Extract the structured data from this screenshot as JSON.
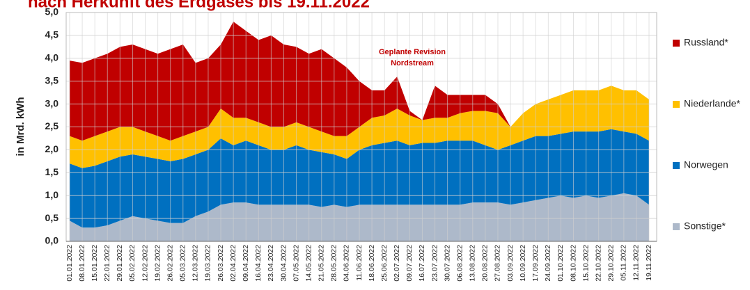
{
  "chart_data": {
    "type": "stacked_area",
    "title": "nach Herkunft des Erdgases bis 19.11.2022",
    "y_label": "in Mrd. kWh",
    "annotations": [
      "Geplante Revision",
      "Nordstream"
    ],
    "legend": "right",
    "grid": true,
    "categories": [
      "01.01.2022",
      "08.01.2022",
      "15.01.2022",
      "22.01.2022",
      "29.01.2022",
      "05.02.2022",
      "12.02.2022",
      "19.02.2022",
      "26.02.2022",
      "05.03.2022",
      "12.03.2022",
      "19.03.2022",
      "26.03.2022",
      "02.04.2022",
      "09.04.2022",
      "16.04.2022",
      "23.04.2022",
      "30.04.2022",
      "07.05.2022",
      "14.05.2022",
      "21.05.2022",
      "28.05.2022",
      "04.06.2022",
      "11.06.2022",
      "18.06.2022",
      "25.06.2022",
      "02.07.2022",
      "09.07.2022",
      "16.07.2022",
      "23.07.2022",
      "30.07.2022",
      "06.08.2022",
      "13.08.2022",
      "20.08.2022",
      "27.08.2022",
      "03.09.2022",
      "10.09.2022",
      "17.09.2022",
      "24.09.2022",
      "01.10.2022",
      "08.10.2022",
      "15.10.2022",
      "22.10.2022",
      "29.10.2022",
      "05.11.2022",
      "12.11.2022",
      "19.11.2022"
    ],
    "ylim": [
      0,
      5
    ],
    "yticks": [
      {
        "value": 0,
        "label": "0,0"
      },
      {
        "value": 0.5,
        "label": "0,5"
      },
      {
        "value": 1,
        "label": "1,0"
      },
      {
        "value": 1.5,
        "label": "1,5"
      },
      {
        "value": 2,
        "label": "2,0"
      },
      {
        "value": 2.5,
        "label": "2,5"
      },
      {
        "value": 3,
        "label": "3,0"
      },
      {
        "value": 3.5,
        "label": "3,5"
      },
      {
        "value": 4,
        "label": "4,0"
      },
      {
        "value": 4.5,
        "label": "4,5"
      },
      {
        "value": 5,
        "label": "5,0"
      }
    ],
    "series": [
      {
        "name": "Sonstige*",
        "color": "#adb9ca",
        "values": [
          0.45,
          0.3,
          0.3,
          0.35,
          0.45,
          0.55,
          0.5,
          0.45,
          0.4,
          0.4,
          0.55,
          0.65,
          0.8,
          0.85,
          0.85,
          0.8,
          0.8,
          0.8,
          0.8,
          0.8,
          0.75,
          0.8,
          0.75,
          0.8,
          0.8,
          0.8,
          0.8,
          0.8,
          0.8,
          0.8,
          0.8,
          0.8,
          0.85,
          0.85,
          0.85,
          0.8,
          0.85,
          0.9,
          0.95,
          1.0,
          0.95,
          1.0,
          0.95,
          1.0,
          1.05,
          1.0,
          0.8
        ]
      },
      {
        "name": "Norwegen",
        "color": "#0070c0",
        "values": [
          1.25,
          1.3,
          1.35,
          1.4,
          1.4,
          1.35,
          1.35,
          1.35,
          1.35,
          1.4,
          1.35,
          1.35,
          1.45,
          1.25,
          1.35,
          1.3,
          1.2,
          1.2,
          1.3,
          1.2,
          1.2,
          1.1,
          1.05,
          1.2,
          1.3,
          1.35,
          1.4,
          1.3,
          1.35,
          1.35,
          1.4,
          1.4,
          1.35,
          1.25,
          1.15,
          1.3,
          1.35,
          1.4,
          1.35,
          1.35,
          1.45,
          1.4,
          1.45,
          1.45,
          1.35,
          1.35,
          1.4
        ]
      },
      {
        "name": "Niederlande*",
        "color": "#ffc000",
        "values": [
          0.6,
          0.6,
          0.65,
          0.65,
          0.65,
          0.6,
          0.55,
          0.5,
          0.45,
          0.5,
          0.5,
          0.5,
          0.65,
          0.6,
          0.5,
          0.5,
          0.5,
          0.5,
          0.5,
          0.5,
          0.45,
          0.4,
          0.5,
          0.5,
          0.6,
          0.6,
          0.7,
          0.65,
          0.5,
          0.55,
          0.5,
          0.6,
          0.65,
          0.75,
          0.8,
          0.4,
          0.6,
          0.7,
          0.8,
          0.85,
          0.9,
          0.9,
          0.9,
          0.95,
          0.9,
          0.95,
          0.9
        ]
      },
      {
        "name": "Russland*",
        "color": "#c00000",
        "values": [
          1.65,
          1.7,
          1.7,
          1.7,
          1.75,
          1.8,
          1.8,
          1.8,
          2.0,
          2.0,
          1.5,
          1.5,
          1.4,
          2.1,
          1.9,
          1.8,
          2.0,
          1.8,
          1.65,
          1.6,
          1.8,
          1.7,
          1.5,
          1.0,
          0.6,
          0.55,
          0.7,
          0.1,
          0,
          0.7,
          0.5,
          0.4,
          0.35,
          0.35,
          0.2,
          0,
          0,
          0,
          0,
          0,
          0,
          0,
          0,
          0,
          0,
          0,
          0
        ]
      }
    ]
  }
}
